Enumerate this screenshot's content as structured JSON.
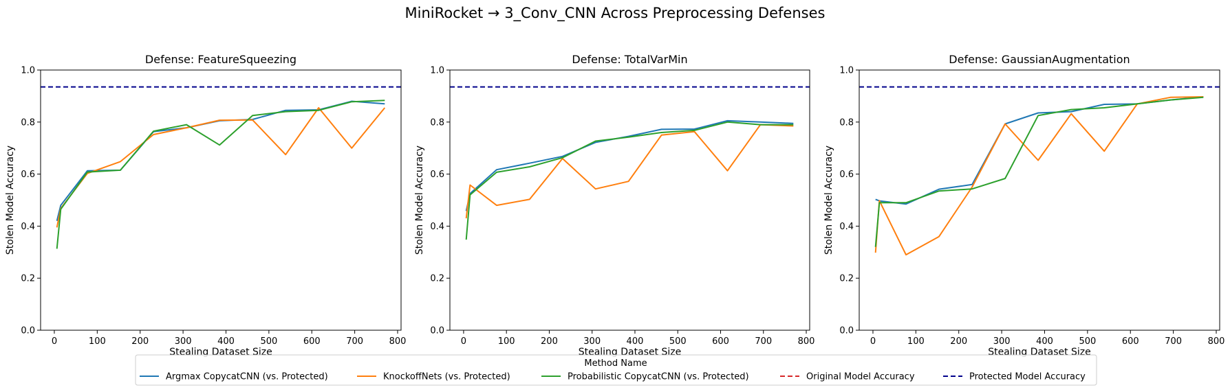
{
  "title": "MiniRocket → 3_Conv_CNN Across Preprocessing Defenses",
  "legend": {
    "title": "Method Name",
    "entries": [
      {
        "label": "Argmax CopycatCNN (vs. Protected)",
        "color": "#1f77b4",
        "dash": "solid"
      },
      {
        "label": "KnockoffNets (vs. Protected)",
        "color": "#ff7f0e",
        "dash": "solid"
      },
      {
        "label": "Probabilistic CopycatCNN (vs. Protected)",
        "color": "#2ca02c",
        "dash": "solid"
      },
      {
        "label": "Original Model Accuracy",
        "color": "#d62728",
        "dash": "dashed"
      },
      {
        "label": "Protected Model Accuracy",
        "color": "#00008b",
        "dash": "dashed"
      }
    ]
  },
  "chart_data": [
    {
      "type": "line",
      "title": "Defense: FeatureSqueezing",
      "xlabel": "Stealing Dataset Size",
      "ylabel": "Stolen Model Accuracy",
      "xlim": [
        -32,
        808
      ],
      "ylim": [
        0,
        1
      ],
      "xticks": [
        0,
        100,
        200,
        300,
        400,
        500,
        600,
        700,
        800
      ],
      "yticks": [
        0.0,
        0.2,
        0.4,
        0.6,
        0.8,
        1.0
      ],
      "protected_accuracy": 0.935,
      "series": [
        {
          "name": "Argmax CopycatCNN (vs. Protected)",
          "color": "#1f77b4",
          "x": [
            6,
            15,
            77,
            154,
            231,
            308,
            385,
            462,
            539,
            616,
            693,
            770
          ],
          "y": [
            0.42,
            0.48,
            0.613,
            0.615,
            0.763,
            0.778,
            0.805,
            0.81,
            0.845,
            0.847,
            0.88,
            0.87
          ]
        },
        {
          "name": "KnockoffNets (vs. Protected)",
          "color": "#ff7f0e",
          "x": [
            6,
            15,
            77,
            154,
            231,
            308,
            385,
            462,
            539,
            616,
            693,
            770
          ],
          "y": [
            0.395,
            0.468,
            0.603,
            0.648,
            0.752,
            0.778,
            0.807,
            0.808,
            0.675,
            0.855,
            0.7,
            0.855
          ]
        },
        {
          "name": "Probabilistic CopycatCNN (vs. Protected)",
          "color": "#2ca02c",
          "x": [
            6,
            15,
            77,
            154,
            231,
            308,
            385,
            462,
            539,
            616,
            693,
            770
          ],
          "y": [
            0.313,
            0.465,
            0.608,
            0.615,
            0.765,
            0.79,
            0.712,
            0.825,
            0.84,
            0.845,
            0.878,
            0.883
          ]
        }
      ]
    },
    {
      "type": "line",
      "title": "Defense: TotalVarMin",
      "xlabel": "Stealing Dataset Size",
      "ylabel": "Stolen Model Accuracy",
      "xlim": [
        -32,
        808
      ],
      "ylim": [
        0,
        1
      ],
      "xticks": [
        0,
        100,
        200,
        300,
        400,
        500,
        600,
        700,
        800
      ],
      "yticks": [
        0.0,
        0.2,
        0.4,
        0.6,
        0.8,
        1.0
      ],
      "protected_accuracy": 0.935,
      "series": [
        {
          "name": "Argmax CopycatCNN (vs. Protected)",
          "color": "#1f77b4",
          "x": [
            6,
            15,
            77,
            154,
            231,
            308,
            385,
            462,
            539,
            616,
            693,
            770
          ],
          "y": [
            0.458,
            0.525,
            0.617,
            0.642,
            0.668,
            0.722,
            0.745,
            0.772,
            0.773,
            0.805,
            0.8,
            0.795
          ]
        },
        {
          "name": "KnockoffNets (vs. Protected)",
          "color": "#ff7f0e",
          "x": [
            6,
            15,
            77,
            154,
            231,
            308,
            385,
            462,
            539,
            616,
            693,
            770
          ],
          "y": [
            0.43,
            0.558,
            0.48,
            0.503,
            0.66,
            0.543,
            0.572,
            0.75,
            0.763,
            0.613,
            0.79,
            0.785
          ]
        },
        {
          "name": "Probabilistic CopycatCNN (vs. Protected)",
          "color": "#2ca02c",
          "x": [
            6,
            15,
            77,
            154,
            231,
            308,
            385,
            462,
            539,
            616,
            693,
            770
          ],
          "y": [
            0.348,
            0.52,
            0.607,
            0.628,
            0.663,
            0.727,
            0.742,
            0.76,
            0.768,
            0.8,
            0.79,
            0.79
          ]
        }
      ]
    },
    {
      "type": "line",
      "title": "Defense: GaussianAugmentation",
      "xlabel": "Stealing Dataset Size",
      "ylabel": "Stolen Model Accuracy",
      "xlim": [
        -32,
        808
      ],
      "ylim": [
        0,
        1
      ],
      "xticks": [
        0,
        100,
        200,
        300,
        400,
        500,
        600,
        700,
        800
      ],
      "yticks": [
        0.0,
        0.2,
        0.4,
        0.6,
        0.8,
        1.0
      ],
      "protected_accuracy": 0.935,
      "series": [
        {
          "name": "Argmax CopycatCNN (vs. Protected)",
          "color": "#1f77b4",
          "x": [
            6,
            15,
            77,
            154,
            231,
            308,
            385,
            462,
            539,
            616,
            693,
            770
          ],
          "y": [
            0.503,
            0.497,
            0.485,
            0.542,
            0.56,
            0.793,
            0.835,
            0.84,
            0.868,
            0.87,
            0.885,
            0.897
          ]
        },
        {
          "name": "KnockoffNets (vs. Protected)",
          "color": "#ff7f0e",
          "x": [
            6,
            15,
            77,
            154,
            231,
            308,
            385,
            462,
            539,
            616,
            693,
            770
          ],
          "y": [
            0.298,
            0.498,
            0.29,
            0.36,
            0.55,
            0.793,
            0.653,
            0.832,
            0.688,
            0.87,
            0.895,
            0.897
          ]
        },
        {
          "name": "Probabilistic CopycatCNN (vs. Protected)",
          "color": "#2ca02c",
          "x": [
            6,
            15,
            77,
            154,
            231,
            308,
            385,
            462,
            539,
            616,
            693,
            770
          ],
          "y": [
            0.32,
            0.49,
            0.49,
            0.535,
            0.543,
            0.583,
            0.825,
            0.848,
            0.855,
            0.87,
            0.885,
            0.895
          ]
        }
      ]
    }
  ]
}
